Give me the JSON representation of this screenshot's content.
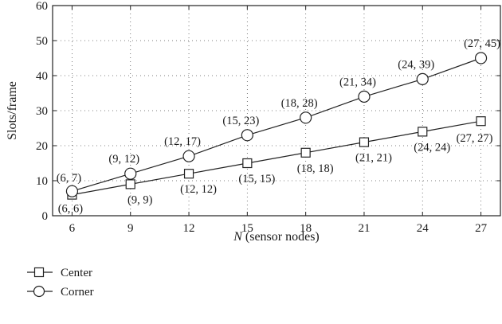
{
  "chart_data": {
    "type": "line",
    "title": "",
    "xlabel_var": "N",
    "xlabel_rest": " (sensor nodes)",
    "ylabel": "Slots/frame",
    "x": [
      6,
      9,
      12,
      15,
      18,
      21,
      24,
      27
    ],
    "xlim": [
      5,
      28
    ],
    "ylim": [
      0,
      60
    ],
    "yticks": [
      0,
      10,
      20,
      30,
      40,
      50,
      60
    ],
    "grid": true,
    "legend_position": "bottom-left, below plot",
    "series": [
      {
        "name": "Center",
        "marker": "square",
        "values": [
          6,
          9,
          12,
          15,
          18,
          21,
          24,
          27
        ],
        "labels": [
          "(6, 6)",
          "(9, 9)",
          "(12, 12)",
          "(15, 15)",
          "(18, 18)",
          "(21, 21)",
          "(24, 24)",
          "(27, 27)"
        ]
      },
      {
        "name": "Corner",
        "marker": "circle",
        "values": [
          7,
          12,
          17,
          23,
          28,
          34,
          39,
          45
        ],
        "labels": [
          "(6, 7)",
          "(9, 12)",
          "(12, 17)",
          "(15, 23)",
          "(18, 28)",
          "(21, 34)",
          "(24, 39)",
          "(27, 45)"
        ]
      }
    ]
  }
}
